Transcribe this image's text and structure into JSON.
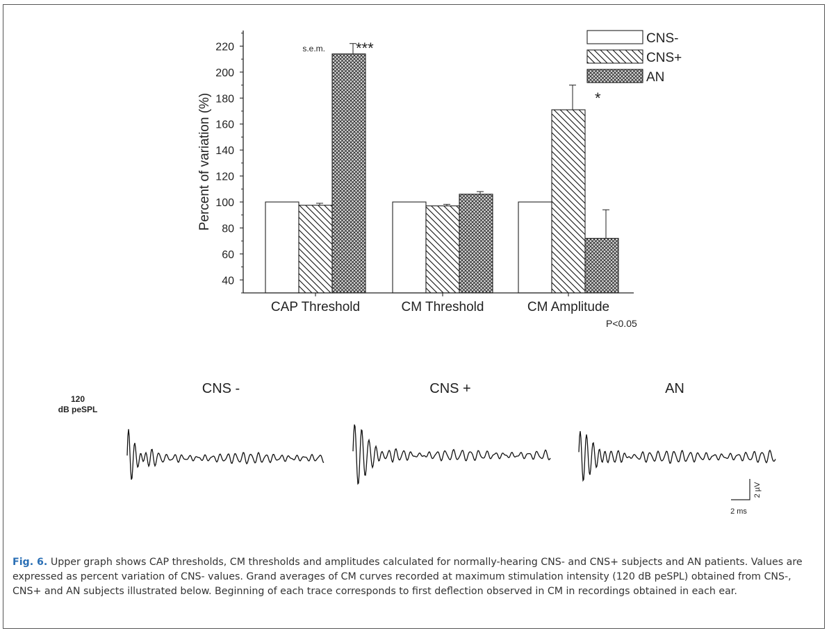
{
  "chart_data": {
    "type": "bar",
    "ylabel": "Percent of variation (%)",
    "yticks": [
      40,
      60,
      80,
      100,
      120,
      140,
      160,
      180,
      200,
      220
    ],
    "ylim": [
      30,
      232
    ],
    "categories": [
      "CAP Threshold",
      "CM Threshold",
      "CM Amplitude"
    ],
    "legend_position": "top-right",
    "series": [
      {
        "name": "CNS-",
        "pattern": "plain",
        "values": [
          100,
          100,
          100
        ],
        "err": [
          0,
          0,
          0
        ]
      },
      {
        "name": "CNS+",
        "pattern": "diagonal",
        "values": [
          97.5,
          97,
          171
        ],
        "err": [
          1.5,
          1.2,
          19
        ]
      },
      {
        "name": "AN",
        "pattern": "crosshatch",
        "values": [
          214,
          106,
          72
        ],
        "err": [
          8,
          2,
          22
        ]
      }
    ],
    "annotations": {
      "sem": "s.e.m.",
      "cap_sig": "***",
      "cm_amp_sig": "*",
      "pvalue": "P<0.05"
    }
  },
  "traces": {
    "intensity_line1": "120",
    "intensity_line2": "dB peSPL",
    "panels": [
      "CNS -",
      "CNS +",
      "AN"
    ],
    "scale_voltage": "2 µV",
    "scale_time": "2 ms"
  },
  "caption": {
    "label": "Fig. 6.",
    "text": " Upper graph shows CAP thresholds, CM thresholds and amplitudes calculated for normally-hearing CNS- and CNS+ subjects and AN patients. Values are expressed as percent variation of CNS- values. Grand averages of CM curves recorded at maximum stimulation intensity (120 dB peSPL) obtained from CNS-, CNS+ and AN subjects illustrated below. Beginning of each trace corresponds to first deflection observed in CM in recordings obtained in each ear."
  }
}
